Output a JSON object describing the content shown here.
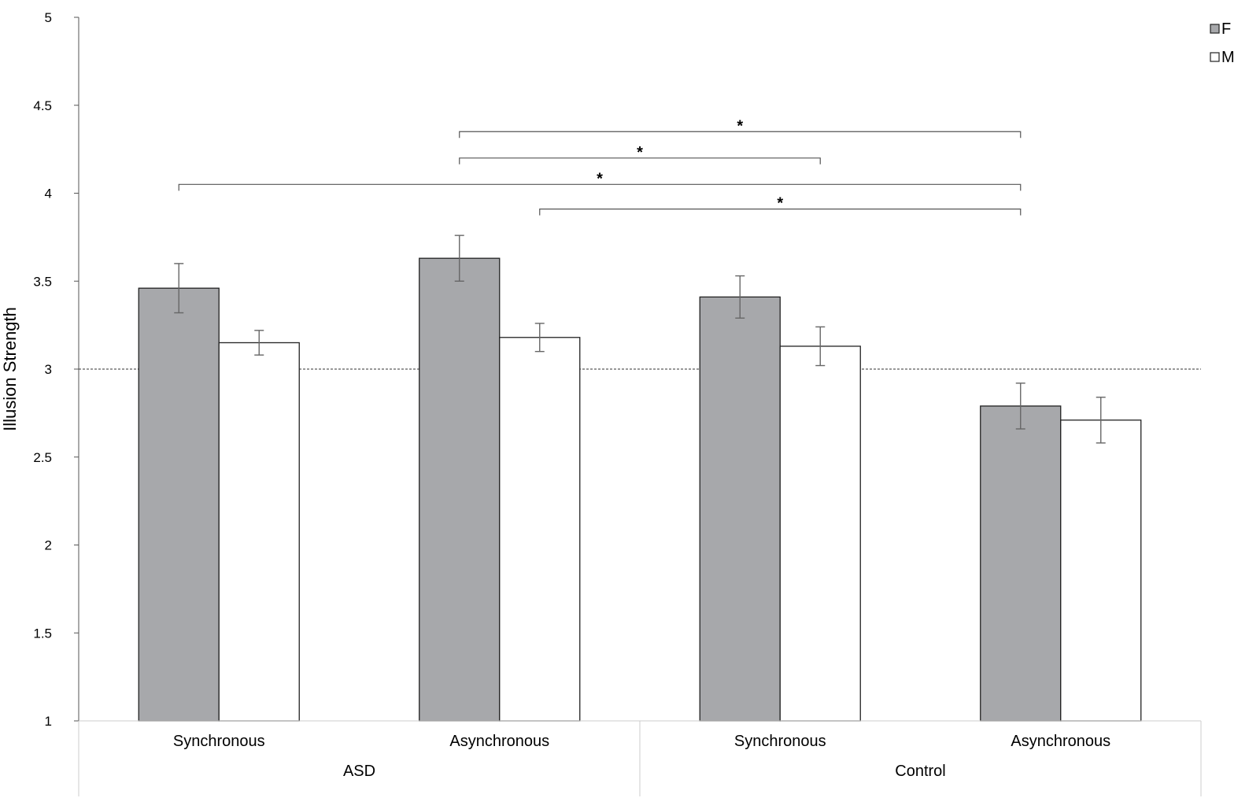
{
  "chart_data": {
    "type": "bar",
    "title": "",
    "ylabel": "Illusion Strength",
    "xlabel": "",
    "ylim": [
      1,
      5
    ],
    "yticks": [
      "1",
      "1.5",
      "2",
      "2.5",
      "3",
      "3.5",
      "4",
      "4.5",
      "5"
    ],
    "reference_line": 3,
    "groups": [
      {
        "label": "ASD",
        "categories": [
          "Synchronous",
          "Asynchronous"
        ]
      },
      {
        "label": "Control",
        "categories": [
          "Synchronous",
          "Asynchronous"
        ]
      }
    ],
    "categories": [
      "Synchronous",
      "Asynchronous",
      "Synchronous",
      "Asynchronous"
    ],
    "series": [
      {
        "name": "F",
        "color": "#a7a8ab",
        "values": [
          3.46,
          3.63,
          3.41,
          2.79
        ],
        "errors": [
          0.14,
          0.13,
          0.12,
          0.13
        ]
      },
      {
        "name": "M",
        "color": "#ffffff",
        "values": [
          3.15,
          3.18,
          3.13,
          2.71
        ],
        "errors": [
          0.07,
          0.08,
          0.11,
          0.13
        ]
      }
    ],
    "legend": {
      "position": "top-right"
    },
    "grid": false,
    "significance": [
      {
        "from": {
          "category": 1,
          "series": 0
        },
        "to": {
          "category": 3,
          "series": 0
        },
        "label": "*",
        "y": 4.35
      },
      {
        "from": {
          "category": 1,
          "series": 0
        },
        "to": {
          "category": 2,
          "series": 1
        },
        "label": "*",
        "y": 4.2
      },
      {
        "from": {
          "category": 0,
          "series": 0
        },
        "to": {
          "category": 3,
          "series": 0
        },
        "label": "*",
        "y": 4.05
      },
      {
        "from": {
          "category": 1,
          "series": 1
        },
        "to": {
          "category": 3,
          "series": 0
        },
        "label": "*",
        "y": 3.91
      }
    ]
  }
}
